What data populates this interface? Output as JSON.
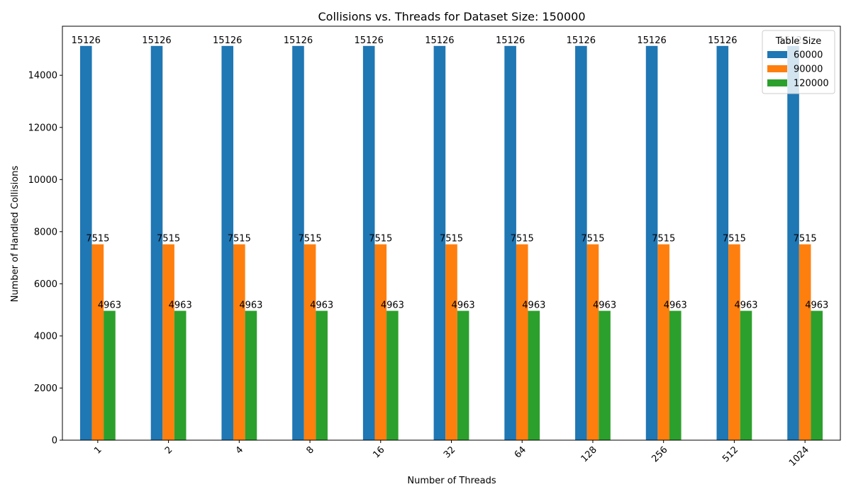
{
  "chart_data": {
    "type": "bar",
    "title": "Collisions vs. Threads for Dataset Size: 150000",
    "xlabel": "Number of Threads",
    "ylabel": "Number of Handled Collisions",
    "categories": [
      "1",
      "2",
      "4",
      "8",
      "16",
      "32",
      "64",
      "128",
      "256",
      "512",
      "1024"
    ],
    "series": [
      {
        "name": "60000",
        "color": "#1f77b4",
        "values": [
          15126,
          15126,
          15126,
          15126,
          15126,
          15126,
          15126,
          15126,
          15126,
          15126,
          15126
        ]
      },
      {
        "name": "90000",
        "color": "#ff7f0e",
        "values": [
          7515,
          7515,
          7515,
          7515,
          7515,
          7515,
          7515,
          7515,
          7515,
          7515,
          7515
        ]
      },
      {
        "name": "120000",
        "color": "#2ca02c",
        "values": [
          4963,
          4963,
          4963,
          4963,
          4963,
          4963,
          4963,
          4963,
          4963,
          4963,
          4963
        ]
      }
    ],
    "ylim": [
      0,
      15882
    ],
    "yticks": [
      0,
      2000,
      4000,
      6000,
      8000,
      10000,
      12000,
      14000
    ],
    "legend": {
      "title": "Table Size",
      "placement": "top-right"
    },
    "grid": false,
    "x_tick_rotation": "45°"
  }
}
